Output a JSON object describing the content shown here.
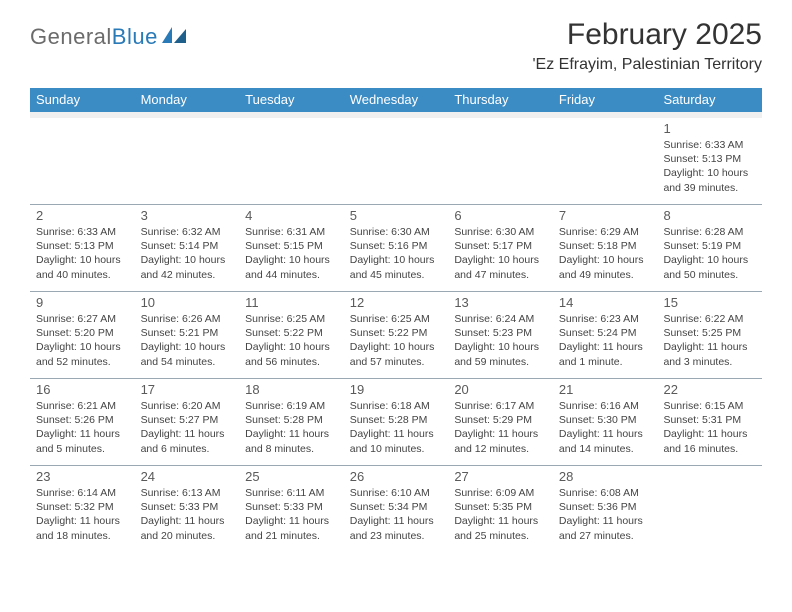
{
  "brand": {
    "part1": "General",
    "part2": "Blue"
  },
  "title": "February 2025",
  "location": "'Ez Efrayim, Palestinian Territory",
  "colors": {
    "header_bg": "#3b8bc4",
    "header_text": "#ffffff",
    "divider": "#9aa8b3",
    "spacer": "#f0f0f0",
    "body_text": "#444444",
    "daynum": "#5a5a5a",
    "brand_gray": "#6b6b6b",
    "brand_blue": "#2a7ab8"
  },
  "weekdays": [
    "Sunday",
    "Monday",
    "Tuesday",
    "Wednesday",
    "Thursday",
    "Friday",
    "Saturday"
  ],
  "weeks": [
    [
      null,
      null,
      null,
      null,
      null,
      null,
      {
        "n": "1",
        "sr": "Sunrise: 6:33 AM",
        "ss": "Sunset: 5:13 PM",
        "dl": "Daylight: 10 hours and 39 minutes."
      }
    ],
    [
      {
        "n": "2",
        "sr": "Sunrise: 6:33 AM",
        "ss": "Sunset: 5:13 PM",
        "dl": "Daylight: 10 hours and 40 minutes."
      },
      {
        "n": "3",
        "sr": "Sunrise: 6:32 AM",
        "ss": "Sunset: 5:14 PM",
        "dl": "Daylight: 10 hours and 42 minutes."
      },
      {
        "n": "4",
        "sr": "Sunrise: 6:31 AM",
        "ss": "Sunset: 5:15 PM",
        "dl": "Daylight: 10 hours and 44 minutes."
      },
      {
        "n": "5",
        "sr": "Sunrise: 6:30 AM",
        "ss": "Sunset: 5:16 PM",
        "dl": "Daylight: 10 hours and 45 minutes."
      },
      {
        "n": "6",
        "sr": "Sunrise: 6:30 AM",
        "ss": "Sunset: 5:17 PM",
        "dl": "Daylight: 10 hours and 47 minutes."
      },
      {
        "n": "7",
        "sr": "Sunrise: 6:29 AM",
        "ss": "Sunset: 5:18 PM",
        "dl": "Daylight: 10 hours and 49 minutes."
      },
      {
        "n": "8",
        "sr": "Sunrise: 6:28 AM",
        "ss": "Sunset: 5:19 PM",
        "dl": "Daylight: 10 hours and 50 minutes."
      }
    ],
    [
      {
        "n": "9",
        "sr": "Sunrise: 6:27 AM",
        "ss": "Sunset: 5:20 PM",
        "dl": "Daylight: 10 hours and 52 minutes."
      },
      {
        "n": "10",
        "sr": "Sunrise: 6:26 AM",
        "ss": "Sunset: 5:21 PM",
        "dl": "Daylight: 10 hours and 54 minutes."
      },
      {
        "n": "11",
        "sr": "Sunrise: 6:25 AM",
        "ss": "Sunset: 5:22 PM",
        "dl": "Daylight: 10 hours and 56 minutes."
      },
      {
        "n": "12",
        "sr": "Sunrise: 6:25 AM",
        "ss": "Sunset: 5:22 PM",
        "dl": "Daylight: 10 hours and 57 minutes."
      },
      {
        "n": "13",
        "sr": "Sunrise: 6:24 AM",
        "ss": "Sunset: 5:23 PM",
        "dl": "Daylight: 10 hours and 59 minutes."
      },
      {
        "n": "14",
        "sr": "Sunrise: 6:23 AM",
        "ss": "Sunset: 5:24 PM",
        "dl": "Daylight: 11 hours and 1 minute."
      },
      {
        "n": "15",
        "sr": "Sunrise: 6:22 AM",
        "ss": "Sunset: 5:25 PM",
        "dl": "Daylight: 11 hours and 3 minutes."
      }
    ],
    [
      {
        "n": "16",
        "sr": "Sunrise: 6:21 AM",
        "ss": "Sunset: 5:26 PM",
        "dl": "Daylight: 11 hours and 5 minutes."
      },
      {
        "n": "17",
        "sr": "Sunrise: 6:20 AM",
        "ss": "Sunset: 5:27 PM",
        "dl": "Daylight: 11 hours and 6 minutes."
      },
      {
        "n": "18",
        "sr": "Sunrise: 6:19 AM",
        "ss": "Sunset: 5:28 PM",
        "dl": "Daylight: 11 hours and 8 minutes."
      },
      {
        "n": "19",
        "sr": "Sunrise: 6:18 AM",
        "ss": "Sunset: 5:28 PM",
        "dl": "Daylight: 11 hours and 10 minutes."
      },
      {
        "n": "20",
        "sr": "Sunrise: 6:17 AM",
        "ss": "Sunset: 5:29 PM",
        "dl": "Daylight: 11 hours and 12 minutes."
      },
      {
        "n": "21",
        "sr": "Sunrise: 6:16 AM",
        "ss": "Sunset: 5:30 PM",
        "dl": "Daylight: 11 hours and 14 minutes."
      },
      {
        "n": "22",
        "sr": "Sunrise: 6:15 AM",
        "ss": "Sunset: 5:31 PM",
        "dl": "Daylight: 11 hours and 16 minutes."
      }
    ],
    [
      {
        "n": "23",
        "sr": "Sunrise: 6:14 AM",
        "ss": "Sunset: 5:32 PM",
        "dl": "Daylight: 11 hours and 18 minutes."
      },
      {
        "n": "24",
        "sr": "Sunrise: 6:13 AM",
        "ss": "Sunset: 5:33 PM",
        "dl": "Daylight: 11 hours and 20 minutes."
      },
      {
        "n": "25",
        "sr": "Sunrise: 6:11 AM",
        "ss": "Sunset: 5:33 PM",
        "dl": "Daylight: 11 hours and 21 minutes."
      },
      {
        "n": "26",
        "sr": "Sunrise: 6:10 AM",
        "ss": "Sunset: 5:34 PM",
        "dl": "Daylight: 11 hours and 23 minutes."
      },
      {
        "n": "27",
        "sr": "Sunrise: 6:09 AM",
        "ss": "Sunset: 5:35 PM",
        "dl": "Daylight: 11 hours and 25 minutes."
      },
      {
        "n": "28",
        "sr": "Sunrise: 6:08 AM",
        "ss": "Sunset: 5:36 PM",
        "dl": "Daylight: 11 hours and 27 minutes."
      },
      null
    ]
  ]
}
